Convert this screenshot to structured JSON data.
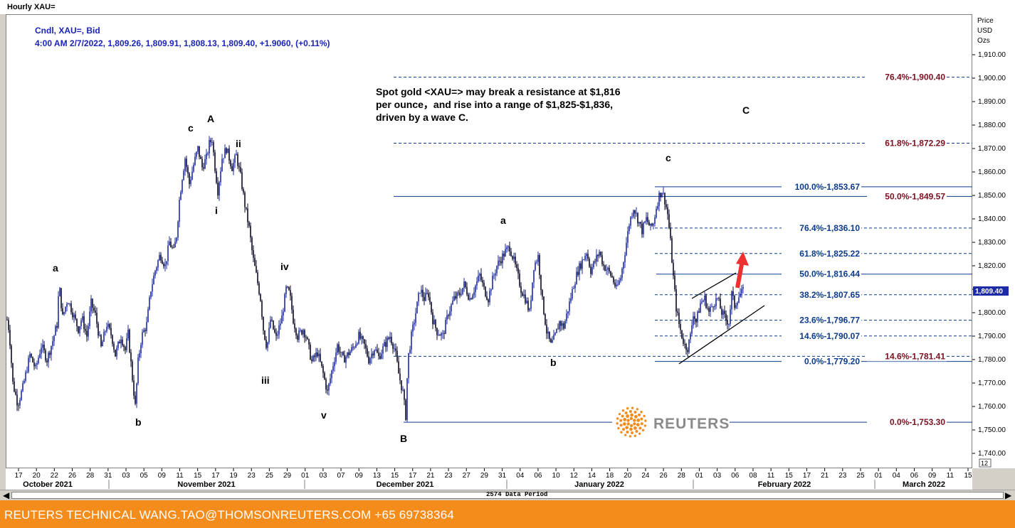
{
  "window": {
    "title": "Hourly XAU="
  },
  "info": {
    "line1": "Cndl, XAU=, Bid",
    "line2": "4:00 AM 2/7/2022, 1,809.26, 1,809.91, 1,808.13, 1,809.40, +1.9060, (+0.11%)"
  },
  "axis": {
    "y_title": [
      "Price",
      "USD",
      "Ozs"
    ],
    "last_price": "1,809.40",
    "corner": "12"
  },
  "annotation": {
    "lines": [
      "Spot gold <XAU=> may break a resistance at $1,816",
      "per ounce，and rise into a range of $1,825-$1,836,",
      "driven by a wave C."
    ]
  },
  "footer": {
    "text": "REUTERS TECHNICAL  WANG.TAO@THOMSONREUTERS.COM  +65 69738364"
  },
  "scrollbar": {
    "label": "2574 Data Period"
  },
  "logo": {
    "text": "REUTERS"
  },
  "colors": {
    "candle": "#1d2ba6",
    "fib_blue": "#0b3b8c",
    "fib_red": "#7b1020",
    "footer": "#f48c1c",
    "arrow": "#f03030"
  },
  "chart_data": {
    "type": "candlestick",
    "title": "Hourly XAU=",
    "ylabel": "Price USD Ozs",
    "ylim": [
      1735,
      1915
    ],
    "y_ticks": [
      "1,740.00",
      "1,750.00",
      "1,760.00",
      "1,770.00",
      "1,780.00",
      "1,790.00",
      "1,800.00",
      "1,810.00",
      "1,820.00",
      "1,830.00",
      "1,840.00",
      "1,850.00",
      "1,860.00",
      "1,870.00",
      "1,880.00",
      "1,890.00",
      "1,900.00",
      "1,910.00"
    ],
    "x_ticks": [
      "17",
      "20",
      "22",
      "26",
      "28",
      "31",
      "03",
      "05",
      "09",
      "11",
      "15",
      "17",
      "19",
      "23",
      "25",
      "29",
      "01",
      "03",
      "07",
      "09",
      "13",
      "15",
      "17",
      "21",
      "23",
      "27",
      "29",
      "31",
      "04",
      "06",
      "10",
      "12",
      "14",
      "18",
      "20",
      "24",
      "26",
      "28",
      "01",
      "03",
      "06",
      "08",
      "11",
      "15",
      "17",
      "21",
      "23",
      "25",
      "01",
      "04",
      "06",
      "09",
      "11",
      "15"
    ],
    "months": [
      "October 2021",
      "November 2021",
      "December 2021",
      "January 2022",
      "February 2022",
      "March 2022"
    ],
    "path": [
      [
        0,
        1797
      ],
      [
        3,
        1792
      ],
      [
        8,
        1770
      ],
      [
        15,
        1761
      ],
      [
        22,
        1768
      ],
      [
        32,
        1782
      ],
      [
        40,
        1776
      ],
      [
        48,
        1786
      ],
      [
        56,
        1780
      ],
      [
        64,
        1788
      ],
      [
        70,
        1795
      ],
      [
        73,
        1812
      ],
      [
        78,
        1798
      ],
      [
        85,
        1806
      ],
      [
        92,
        1800
      ],
      [
        100,
        1793
      ],
      [
        105,
        1798
      ],
      [
        112,
        1790
      ],
      [
        118,
        1804
      ],
      [
        124,
        1799
      ],
      [
        132,
        1785
      ],
      [
        140,
        1795
      ],
      [
        147,
        1790
      ],
      [
        152,
        1782
      ],
      [
        160,
        1790
      ],
      [
        166,
        1784
      ],
      [
        170,
        1791
      ],
      [
        176,
        1772
      ],
      [
        180,
        1760
      ],
      [
        184,
        1779
      ],
      [
        189,
        1790
      ],
      [
        196,
        1795
      ],
      [
        202,
        1810
      ],
      [
        208,
        1818
      ],
      [
        215,
        1825
      ],
      [
        222,
        1820
      ],
      [
        228,
        1830
      ],
      [
        234,
        1826
      ],
      [
        238,
        1833
      ],
      [
        242,
        1848
      ],
      [
        246,
        1858
      ],
      [
        250,
        1866
      ],
      [
        256,
        1855
      ],
      [
        262,
        1863
      ],
      [
        268,
        1870
      ],
      [
        274,
        1862
      ],
      [
        280,
        1866
      ],
      [
        284,
        1872
      ],
      [
        288,
        1874
      ],
      [
        292,
        1862
      ],
      [
        296,
        1852
      ],
      [
        302,
        1866
      ],
      [
        308,
        1870
      ],
      [
        316,
        1862
      ],
      [
        322,
        1867
      ],
      [
        328,
        1858
      ],
      [
        334,
        1846
      ],
      [
        340,
        1836
      ],
      [
        345,
        1824
      ],
      [
        350,
        1816
      ],
      [
        356,
        1806
      ],
      [
        360,
        1793
      ],
      [
        365,
        1785
      ],
      [
        370,
        1797
      ],
      [
        378,
        1789
      ],
      [
        386,
        1798
      ],
      [
        392,
        1810
      ],
      [
        397,
        1808
      ],
      [
        402,
        1797
      ],
      [
        408,
        1790
      ],
      [
        416,
        1793
      ],
      [
        420,
        1790
      ],
      [
        428,
        1779
      ],
      [
        436,
        1783
      ],
      [
        444,
        1774
      ],
      [
        450,
        1766
      ],
      [
        458,
        1778
      ],
      [
        464,
        1786
      ],
      [
        472,
        1780
      ],
      [
        478,
        1782
      ],
      [
        486,
        1785
      ],
      [
        494,
        1790
      ],
      [
        502,
        1786
      ],
      [
        508,
        1780
      ],
      [
        516,
        1785
      ],
      [
        522,
        1781
      ],
      [
        530,
        1786
      ],
      [
        538,
        1790
      ],
      [
        545,
        1784
      ],
      [
        550,
        1774
      ],
      [
        556,
        1766
      ],
      [
        560,
        1756
      ],
      [
        563,
        1780
      ],
      [
        568,
        1790
      ],
      [
        574,
        1800
      ],
      [
        580,
        1810
      ],
      [
        586,
        1806
      ],
      [
        592,
        1808
      ],
      [
        598,
        1797
      ],
      [
        604,
        1792
      ],
      [
        612,
        1790
      ],
      [
        620,
        1800
      ],
      [
        628,
        1806
      ],
      [
        636,
        1808
      ],
      [
        642,
        1812
      ],
      [
        650,
        1806
      ],
      [
        656,
        1810
      ],
      [
        664,
        1816
      ],
      [
        670,
        1810
      ],
      [
        676,
        1806
      ],
      [
        682,
        1814
      ],
      [
        688,
        1820
      ],
      [
        694,
        1823
      ],
      [
        700,
        1826
      ],
      [
        706,
        1828
      ],
      [
        712,
        1822
      ],
      [
        718,
        1815
      ],
      [
        722,
        1810
      ],
      [
        728,
        1806
      ],
      [
        734,
        1800
      ],
      [
        740,
        1820
      ],
      [
        746,
        1824
      ],
      [
        752,
        1805
      ],
      [
        758,
        1792
      ],
      [
        764,
        1786
      ],
      [
        770,
        1790
      ],
      [
        776,
        1796
      ],
      [
        782,
        1794
      ],
      [
        790,
        1804
      ],
      [
        796,
        1812
      ],
      [
        802,
        1818
      ],
      [
        808,
        1822
      ],
      [
        814,
        1826
      ],
      [
        820,
        1818
      ],
      [
        826,
        1822
      ],
      [
        832,
        1826
      ],
      [
        838,
        1820
      ],
      [
        844,
        1818
      ],
      [
        850,
        1815
      ],
      [
        856,
        1810
      ],
      [
        862,
        1815
      ],
      [
        868,
        1826
      ],
      [
        874,
        1838
      ],
      [
        880,
        1845
      ],
      [
        886,
        1840
      ],
      [
        892,
        1835
      ],
      [
        898,
        1840
      ],
      [
        904,
        1836
      ],
      [
        908,
        1838
      ],
      [
        912,
        1845
      ],
      [
        916,
        1850
      ],
      [
        920,
        1852
      ],
      [
        924,
        1848
      ],
      [
        928,
        1842
      ],
      [
        932,
        1830
      ],
      [
        936,
        1815
      ],
      [
        940,
        1802
      ],
      [
        944,
        1795
      ],
      [
        948,
        1790
      ],
      [
        952,
        1786
      ],
      [
        956,
        1785
      ],
      [
        960,
        1790
      ],
      [
        964,
        1800
      ],
      [
        968,
        1796
      ],
      [
        974,
        1804
      ],
      [
        980,
        1806
      ],
      [
        986,
        1800
      ],
      [
        992,
        1804
      ],
      [
        998,
        1806
      ],
      [
        1004,
        1800
      ],
      [
        1010,
        1797
      ],
      [
        1014,
        1796
      ],
      [
        1018,
        1808
      ],
      [
        1022,
        1803
      ],
      [
        1026,
        1806
      ],
      [
        1030,
        1808
      ],
      [
        1034,
        1809
      ]
    ],
    "fib_blue": [
      {
        "label": "100.0%",
        "value": "1,853.67",
        "y": 1853.67
      },
      {
        "label": "76.4%",
        "value": "1,836.10",
        "y": 1836.1
      },
      {
        "label": "61.8%",
        "value": "1,825.22",
        "y": 1825.22
      },
      {
        "label": "50.0%",
        "value": "1,816.44",
        "y": 1816.44
      },
      {
        "label": "38.2%",
        "value": "1,807.65",
        "y": 1807.65
      },
      {
        "label": "23.6%",
        "value": "1,796.77",
        "y": 1796.77
      },
      {
        "label": "14.6%",
        "value": "1,790.07",
        "y": 1790.07
      },
      {
        "label": "0.0%",
        "value": "1,779.20",
        "y": 1779.2
      }
    ],
    "fib_red": [
      {
        "label": "76.4%",
        "value": "1,900.40",
        "y": 1900.4
      },
      {
        "label": "61.8%",
        "value": "1,872.29",
        "y": 1872.29
      },
      {
        "label": "50.0%",
        "value": "1,849.57",
        "y": 1849.57
      },
      {
        "label": "14.6%",
        "value": "1,781.41",
        "y": 1781.41
      },
      {
        "label": "0.0%",
        "value": "1,753.30",
        "y": 1753.3
      }
    ],
    "wave_labels": [
      "a",
      "b",
      "c",
      "A",
      "ii",
      "i",
      "iii",
      "iv",
      "v",
      "B",
      "a",
      "b",
      "c",
      "C"
    ]
  }
}
